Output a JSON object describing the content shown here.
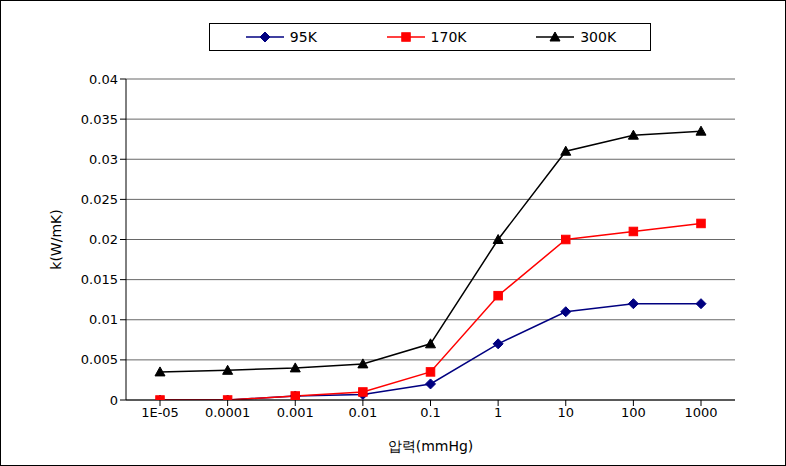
{
  "chart_data": {
    "type": "line",
    "x_label": "압력(mmHg)",
    "y_label": "k(W/mK)",
    "categories": [
      "1E-05",
      "0.0001",
      "0.001",
      "0.01",
      "0.1",
      "1",
      "10",
      "100",
      "1000"
    ],
    "series": [
      {
        "name": "95K",
        "color": "#000080",
        "marker": "diamond",
        "values": [
          0,
          0,
          0.0005,
          0.0007,
          0.002,
          0.007,
          0.011,
          0.012,
          0.012
        ]
      },
      {
        "name": "170K",
        "color": "#ff0000",
        "marker": "square",
        "values": [
          0,
          0,
          0.0005,
          0.001,
          0.0035,
          0.013,
          0.02,
          0.021,
          0.022
        ]
      },
      {
        "name": "300K",
        "color": "#000000",
        "marker": "triangle",
        "values": [
          0.0035,
          0.0037,
          0.004,
          0.0045,
          0.007,
          0.02,
          0.031,
          0.033,
          0.0335
        ]
      }
    ],
    "ylim": [
      0,
      0.04
    ],
    "yticks": [
      0,
      0.005,
      0.01,
      0.015,
      0.02,
      0.025,
      0.03,
      0.035,
      0.04
    ],
    "grid": true,
    "legend": "top"
  }
}
